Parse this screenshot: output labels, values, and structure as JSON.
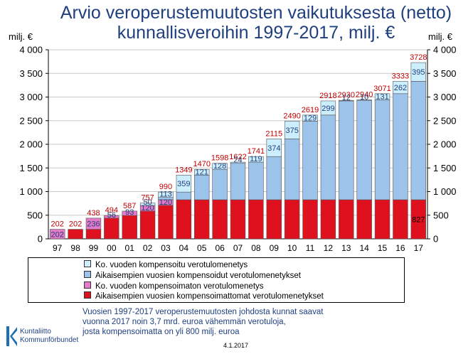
{
  "title_lines": [
    "Arvio veroperustemuutosten vaikutuksesta (netto)",
    "kunnallisveroihin 1997-2017, milj. €"
  ],
  "unit_left": "milj. €",
  "unit_right": "milj. €",
  "chart_data": {
    "type": "bar",
    "stacked": true,
    "categories": [
      "97",
      "98",
      "99",
      "00",
      "01",
      "02",
      "03",
      "04",
      "05",
      "06",
      "07",
      "08",
      "09",
      "10",
      "11",
      "12",
      "13",
      "14",
      "15",
      "16",
      "17"
    ],
    "series": [
      {
        "name": "Aikaisempien vuosien kompensoimattomat verotulomenetykset",
        "color": "#e0111f",
        "values": [
          0,
          202,
          202,
          438,
          494,
          587,
          709,
          827,
          827,
          827,
          827,
          827,
          827,
          827,
          827,
          827,
          827,
          827,
          827,
          827,
          827
        ]
      },
      {
        "name": "Ko. vuoden kompensoimaton verotulomenetys",
        "color": "#e57ac6",
        "values": [
          202,
          0,
          236,
          56,
          93,
          120,
          120,
          0,
          0,
          0,
          0,
          0,
          0,
          0,
          0,
          0,
          0,
          0,
          0,
          0,
          0
        ]
      },
      {
        "name": "Aikaisempien vuosien kompensoidut verotulomenetykset",
        "color": "#9cc3ea",
        "values": [
          0,
          0,
          0,
          0,
          0,
          0,
          48,
          163,
          522,
          643,
          771,
          795,
          914,
          1288,
          1663,
          1792,
          2091,
          2103,
          2113,
          2244,
          2506
        ]
      },
      {
        "name": "Ko. vuoden kompensoitu verotulomenetys",
        "color": "#cdeefc",
        "values": [
          0,
          0,
          0,
          0,
          0,
          50,
          113,
          359,
          121,
          128,
          24,
          119,
          374,
          375,
          129,
          299,
          12,
          10,
          131,
          262,
          395
        ]
      }
    ],
    "segment_labels": [
      {
        "category": "97",
        "series": 1,
        "text": "202"
      },
      {
        "category": "99",
        "series": 1,
        "text": "236"
      },
      {
        "category": "00",
        "series": 1,
        "text": "56"
      },
      {
        "category": "01",
        "series": 1,
        "text": "93"
      },
      {
        "category": "02",
        "series": 1,
        "text": "120"
      },
      {
        "category": "02",
        "series": 3,
        "text": "50"
      },
      {
        "category": "03",
        "series": 1,
        "text": "120"
      },
      {
        "category": "03",
        "series": 3,
        "text": "113"
      },
      {
        "category": "04",
        "series": 3,
        "text": "359"
      },
      {
        "category": "05",
        "series": 3,
        "text": "121"
      },
      {
        "category": "06",
        "series": 3,
        "text": "128"
      },
      {
        "category": "07",
        "series": 3,
        "text": "24"
      },
      {
        "category": "08",
        "series": 3,
        "text": "119"
      },
      {
        "category": "09",
        "series": 3,
        "text": "374"
      },
      {
        "category": "10",
        "series": 3,
        "text": "375"
      },
      {
        "category": "11",
        "series": 3,
        "text": "129"
      },
      {
        "category": "12",
        "series": 3,
        "text": "299"
      },
      {
        "category": "13",
        "series": 3,
        "text": "12"
      },
      {
        "category": "14",
        "series": 3,
        "text": "10"
      },
      {
        "category": "15",
        "series": 3,
        "text": "131"
      },
      {
        "category": "16",
        "series": 3,
        "text": "262"
      },
      {
        "category": "17",
        "series": 3,
        "text": "395"
      },
      {
        "category": "17",
        "series": 0,
        "text": "827"
      }
    ],
    "totals": [
      202,
      202,
      438,
      494,
      587,
      757,
      990,
      1349,
      1470,
      1598,
      1622,
      1741,
      2115,
      2490,
      2619,
      2918,
      2930,
      2940,
      3071,
      3333,
      3728
    ],
    "ylim": [
      0,
      4000
    ],
    "yticks": [
      0,
      500,
      1000,
      1500,
      2000,
      2500,
      3000,
      3500,
      4000
    ],
    "ytick_labels": [
      "0",
      "500",
      "1 000",
      "1 500",
      "2 000",
      "2 500",
      "3 000",
      "3 500",
      "4 000"
    ],
    "grid": true,
    "legend_position": "bottom"
  },
  "legend": {
    "items": [
      {
        "label": "Ko. vuoden kompensoitu verotulomenetys",
        "color": "#cdeefc"
      },
      {
        "label": "Aikaisempien vuosien kompensoidut verotulomenetykset",
        "color": "#9cc3ea"
      },
      {
        "label": "Ko. vuoden kompensoimaton verotulomenetys",
        "color": "#e57ac6"
      },
      {
        "label": "Aikaisempien vuosien kompensoimattomat verotulomenetykset",
        "color": "#e0111f"
      }
    ]
  },
  "note_lines": [
    "Vuosien 1997-2017 veroperustemuutosten johdosta kunnat saavat",
    " vuonna 2017 noin 3,7 mrd. euroa vähemmän verotuloja,",
    "josta kompensoimatta on yli 800 milj. euroa"
  ],
  "logo": {
    "line1": "Kuntaliitto",
    "line2": "Kommunförbundet"
  },
  "date": "4.1.2017",
  "colors": {
    "title": "#1f3f7f",
    "totals": "#c00000",
    "grid": "#c8c8c8"
  }
}
